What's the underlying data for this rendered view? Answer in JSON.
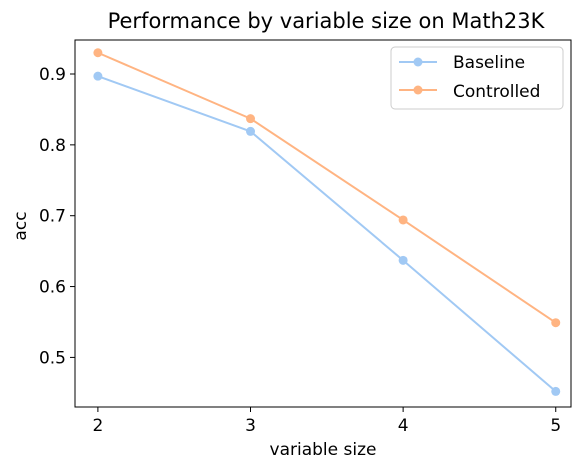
{
  "chart_data": {
    "type": "line",
    "title": "Performance by variable size on Math23K",
    "xlabel": "variable size",
    "ylabel": "acc",
    "x": [
      2,
      3,
      4,
      5
    ],
    "x_ticks": [
      "2",
      "3",
      "4",
      "5"
    ],
    "y_ticks": [
      "0.5",
      "0.6",
      "0.7",
      "0.8",
      "0.9"
    ],
    "xlim": [
      1.85,
      5.1
    ],
    "ylim": [
      0.43,
      0.948
    ],
    "series": [
      {
        "name": "Baseline",
        "color": "#a1c9f4",
        "values": [
          0.897,
          0.819,
          0.637,
          0.452
        ]
      },
      {
        "name": "Controlled",
        "color": "#ffb482",
        "values": [
          0.93,
          0.837,
          0.694,
          0.549
        ]
      }
    ],
    "legend_position": "top-right",
    "grid": false,
    "marker": "circle"
  }
}
